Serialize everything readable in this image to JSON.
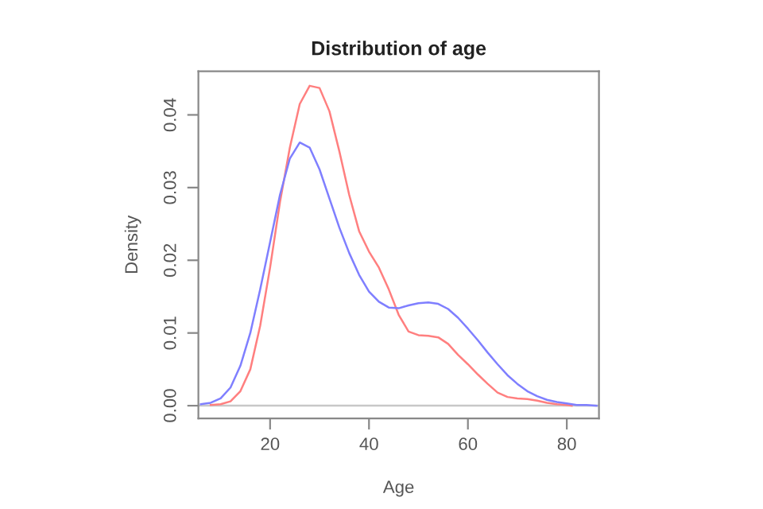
{
  "chart_data": {
    "type": "line",
    "title": "Distribution of age",
    "xlabel": "Age",
    "ylabel": "Density",
    "xlim": [
      5.5,
      86.5
    ],
    "ylim": [
      -0.00175,
      0.046
    ],
    "xticks": [
      20,
      40,
      60,
      80
    ],
    "yticks": [
      {
        "value": 0,
        "label": "0.00"
      },
      {
        "value": 0.01,
        "label": "0.01"
      },
      {
        "value": 0.02,
        "label": "0.02"
      },
      {
        "value": 0.03,
        "label": "0.03"
      },
      {
        "value": 0.04,
        "label": "0.04"
      }
    ],
    "grid": false,
    "line_style": "solid",
    "marker": "none",
    "ref_lines": [
      {
        "axis": "y",
        "value": 0,
        "color": "#c8c8c8"
      }
    ],
    "series": [
      {
        "color": "#ff7f7f",
        "x": [
          8,
          10,
          12,
          14,
          16,
          18,
          20,
          22,
          24,
          26,
          28,
          30,
          32,
          34,
          36,
          38,
          40,
          42,
          44,
          46,
          48,
          50,
          52,
          54,
          56,
          58,
          60,
          62,
          64,
          66,
          68,
          70,
          72,
          74,
          76,
          78,
          80,
          81
        ],
        "values": [
          0.0001,
          0.0002,
          0.0006,
          0.002,
          0.005,
          0.011,
          0.019,
          0.028,
          0.0355,
          0.0415,
          0.044,
          0.0437,
          0.0405,
          0.035,
          0.029,
          0.024,
          0.0212,
          0.019,
          0.016,
          0.0125,
          0.0102,
          0.0097,
          0.0096,
          0.0094,
          0.0085,
          0.007,
          0.0057,
          0.0043,
          0.003,
          0.0018,
          0.0012,
          0.001,
          0.0009,
          0.0007,
          0.0004,
          0.0002,
          0.0001,
          0.0
        ]
      },
      {
        "color": "#7f7fff",
        "x": [
          6,
          8,
          10,
          12,
          14,
          16,
          18,
          20,
          22,
          24,
          26,
          28,
          30,
          32,
          34,
          36,
          38,
          40,
          42,
          44,
          46,
          48,
          50,
          52,
          54,
          56,
          58,
          60,
          62,
          64,
          66,
          68,
          70,
          72,
          74,
          76,
          78,
          80,
          82,
          84,
          86
        ],
        "values": [
          0.0002,
          0.0004,
          0.001,
          0.0025,
          0.0055,
          0.01,
          0.016,
          0.0225,
          0.029,
          0.034,
          0.0362,
          0.0355,
          0.0325,
          0.0285,
          0.0245,
          0.021,
          0.018,
          0.0157,
          0.0143,
          0.0135,
          0.0134,
          0.0138,
          0.0141,
          0.0142,
          0.014,
          0.0133,
          0.0121,
          0.0106,
          0.009,
          0.0073,
          0.0057,
          0.0042,
          0.003,
          0.002,
          0.0013,
          0.0008,
          0.0005,
          0.0003,
          0.0001,
          0.0001,
          0.0
        ]
      }
    ]
  }
}
